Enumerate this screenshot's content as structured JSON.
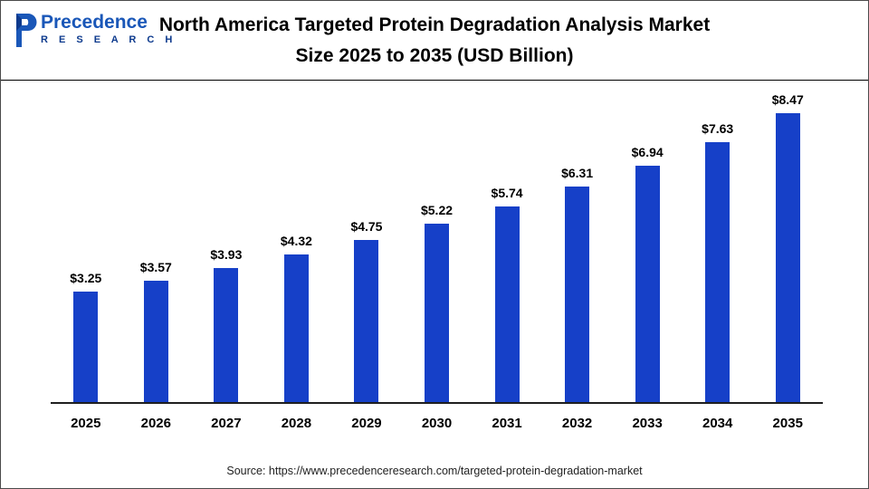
{
  "header": {
    "title_line1": "North America Targeted Protein Degradation Analysis Market",
    "title_line2": "Size 2025 to 2035 (USD Billion)",
    "logo": {
      "name": "Precedence Research",
      "line1": "Precedence",
      "line2": "R E S E A R C H"
    }
  },
  "colors": {
    "bar": "#1640c8",
    "logo_blue": "#1a57b8",
    "logo_dark": "#0d3a8d",
    "axis": "#1f1f1f"
  },
  "chart_data": {
    "type": "bar",
    "title": "North America Targeted Protein Degradation Analysis Market Size 2025 to 2035 (USD Billion)",
    "categories": [
      "2025",
      "2026",
      "2027",
      "2028",
      "2029",
      "2030",
      "2031",
      "2032",
      "2033",
      "2034",
      "2035"
    ],
    "values": [
      3.25,
      3.57,
      3.93,
      4.32,
      4.75,
      5.22,
      5.74,
      6.31,
      6.94,
      7.63,
      8.47
    ],
    "value_prefix": "$",
    "xlabel": "",
    "ylabel": "",
    "ylim": [
      0,
      9
    ],
    "grid": false,
    "legend": false,
    "bar_color": "#1640c8"
  },
  "footer": {
    "source_text": "Source: https://www.precedenceresearch.com/targeted-protein-degradation-market"
  }
}
